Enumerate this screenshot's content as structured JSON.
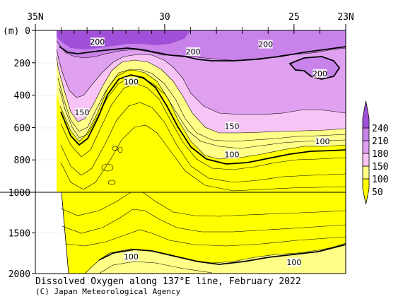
{
  "chart_data": {
    "type": "contour",
    "title": "Dissolved Oxygen along 137°E line, February 2022",
    "credit": "(C) Japan Meteorological Agency",
    "y_unit": "(m)",
    "x_ticks": [
      {
        "lat": 35,
        "label": "35N"
      },
      {
        "lat": 30,
        "label": "30"
      },
      {
        "lat": 25,
        "label": "25"
      },
      {
        "lat": 23,
        "label": "23N"
      }
    ],
    "x_range": [
      35,
      23
    ],
    "y_ticks_upper": [
      {
        "depth": 0,
        "label": "0"
      },
      {
        "depth": 200,
        "label": "200"
      },
      {
        "depth": 400,
        "label": "400"
      },
      {
        "depth": 600,
        "label": "600"
      },
      {
        "depth": 800,
        "label": "800"
      },
      {
        "depth": 1000,
        "label": "1000"
      }
    ],
    "y_ticks_lower": [
      {
        "depth": 1500,
        "label": "1500"
      },
      {
        "depth": 2000,
        "label": "2000"
      }
    ],
    "station_lats": [
      34.0,
      33.5,
      33.0,
      32.5,
      32.0,
      31.5,
      31.0,
      30.5,
      30.0,
      29.0,
      28.0,
      27.0,
      26.0,
      25.0,
      24.0,
      23.0
    ],
    "contour_labels": [
      {
        "text": "200",
        "lat": 32.6,
        "depth": 75
      },
      {
        "text": "200",
        "lat": 28.9,
        "depth": 135
      },
      {
        "text": "200",
        "lat": 26.1,
        "depth": 90
      },
      {
        "text": "200",
        "lat": 24.0,
        "depth": 270
      },
      {
        "text": "150",
        "lat": 33.2,
        "depth": 510
      },
      {
        "text": "100",
        "lat": 31.3,
        "depth": 320
      },
      {
        "text": "150",
        "lat": 27.4,
        "depth": 595
      },
      {
        "text": "100",
        "lat": 27.4,
        "depth": 770
      },
      {
        "text": "100",
        "lat": 23.9,
        "depth": 690
      },
      {
        "text": "100",
        "lat": 31.3,
        "depth": 1800
      },
      {
        "text": "100",
        "lat": 25.0,
        "depth": 1870
      }
    ],
    "colorbar": {
      "levels": [
        "50",
        "100",
        "150",
        "180",
        "210",
        "240"
      ],
      "colors": [
        "#ffff00",
        "#ffff88",
        "#f8c4f5",
        "#e0a0f0",
        "#c882ea",
        "#a050d8"
      ]
    }
  }
}
